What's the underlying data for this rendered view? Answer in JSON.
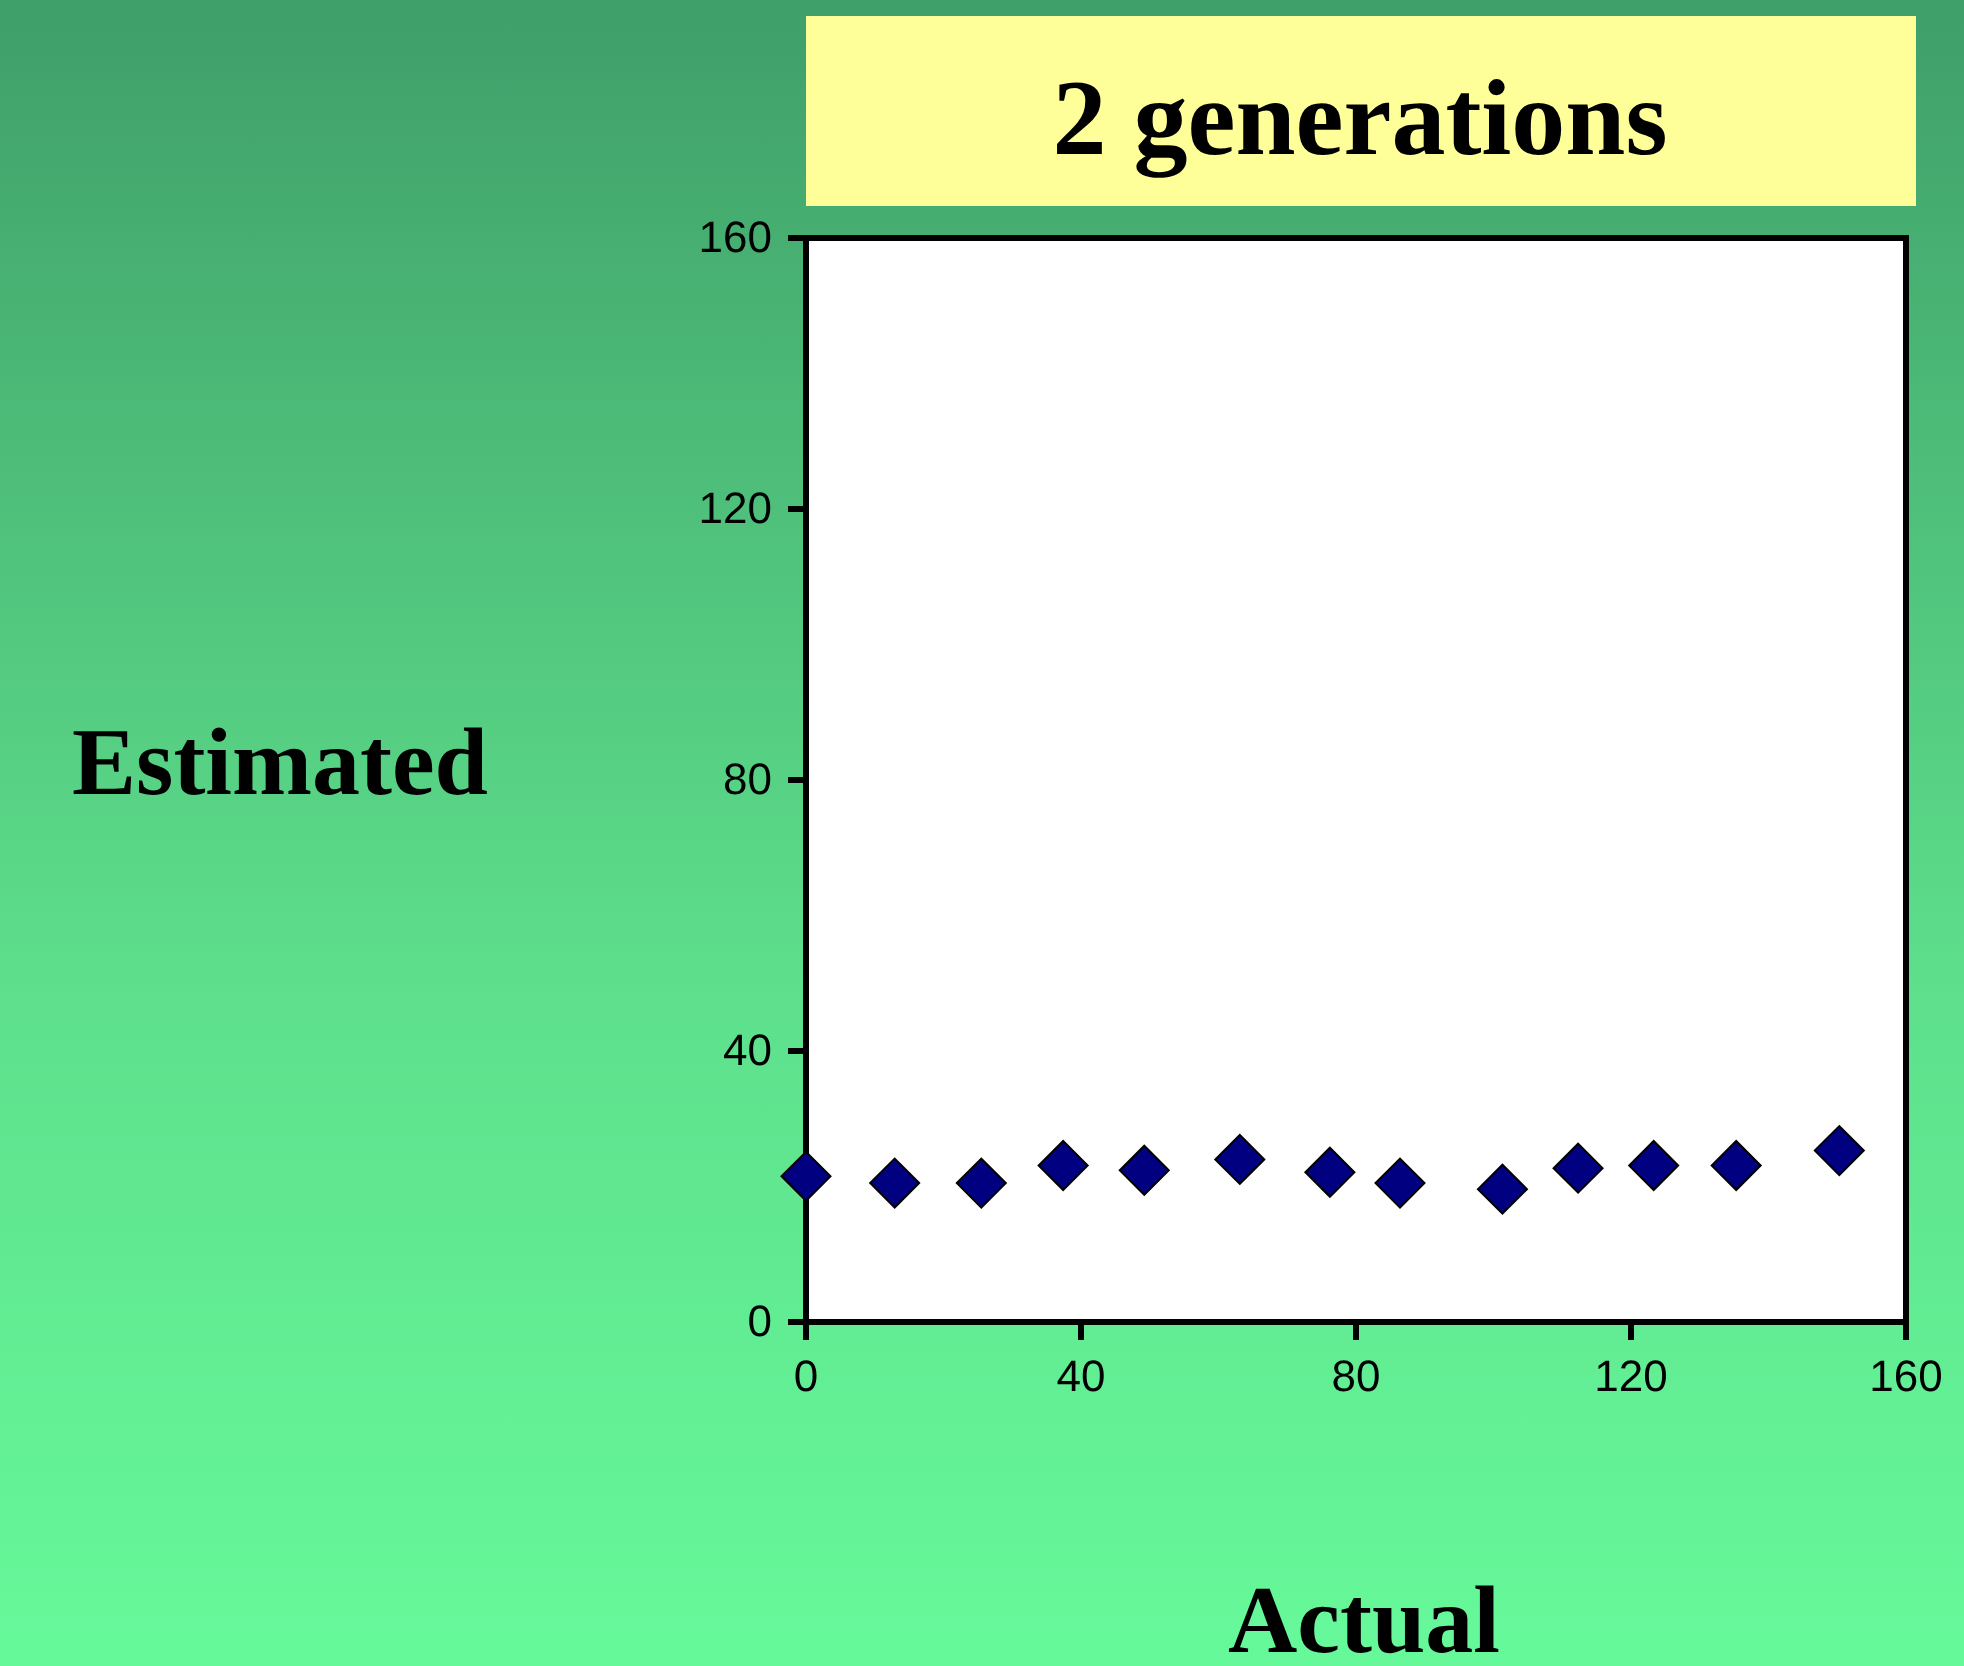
{
  "chart_data": {
    "type": "scatter",
    "title": "2 generations",
    "xlabel": "Actual",
    "ylabel": "Estimated",
    "x": [
      0,
      12.9,
      25.5,
      37.4,
      49.2,
      63.1,
      76.2,
      86.4,
      101.3,
      112.3,
      123.3,
      135.3,
      150.3
    ],
    "series": [
      {
        "color": "#000080",
        "values": [
          21.5,
          20.5,
          20.5,
          23.1,
          22.4,
          24.0,
          22.1,
          20.5,
          19.6,
          22.7,
          23.1,
          23.1,
          25.3
        ]
      }
    ],
    "xlim": [
      0,
      160
    ],
    "ylim": [
      0,
      160
    ],
    "xticks": [
      0,
      40,
      80,
      120,
      160
    ],
    "yticks": [
      0,
      40,
      80,
      120,
      160
    ],
    "marker": "diamond",
    "grid": false
  }
}
